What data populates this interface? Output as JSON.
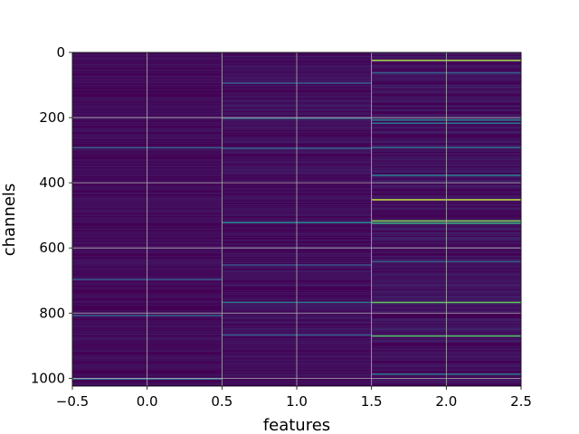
{
  "chart_data": {
    "type": "heatmap",
    "title": "",
    "xlabel": "features",
    "ylabel": "channels",
    "xlim": [
      -0.5,
      2.5
    ],
    "ylim": [
      1024,
      0
    ],
    "y_inverted": true,
    "grid": true,
    "colormap": "viridis",
    "x_ticks": [
      -0.5,
      0.0,
      0.5,
      1.0,
      1.5,
      2.0,
      2.5
    ],
    "x_tick_labels": [
      "−0.5",
      "0.0",
      "0.5",
      "1.0",
      "1.5",
      "2.0",
      "2.5"
    ],
    "y_ticks": [
      0,
      200,
      400,
      600,
      800,
      1000
    ],
    "y_tick_labels": [
      "0",
      "200",
      "400",
      "600",
      "800",
      "1000"
    ],
    "n_channels": 1024,
    "features": [
      0,
      1,
      2
    ],
    "base_color": "#440154",
    "highlight_rows": [
      {
        "feature": 0,
        "channel": 290,
        "value": 0.3
      },
      {
        "feature": 0,
        "channel": 695,
        "value": 0.25
      },
      {
        "feature": 0,
        "channel": 805,
        "value": 0.3
      },
      {
        "feature": 0,
        "channel": 1000,
        "value": 0.35
      },
      {
        "feature": 1,
        "channel": 92,
        "value": 0.3
      },
      {
        "feature": 1,
        "channel": 200,
        "value": 0.35
      },
      {
        "feature": 1,
        "channel": 292,
        "value": 0.3
      },
      {
        "feature": 1,
        "channel": 520,
        "value": 0.45
      },
      {
        "feature": 1,
        "channel": 650,
        "value": 0.25
      },
      {
        "feature": 1,
        "channel": 765,
        "value": 0.4
      },
      {
        "feature": 1,
        "channel": 865,
        "value": 0.3
      },
      {
        "feature": 2,
        "channel": 22,
        "value": 0.85
      },
      {
        "feature": 2,
        "channel": 60,
        "value": 0.3
      },
      {
        "feature": 2,
        "channel": 205,
        "value": 0.45
      },
      {
        "feature": 2,
        "channel": 215,
        "value": 0.4
      },
      {
        "feature": 2,
        "channel": 290,
        "value": 0.35
      },
      {
        "feature": 2,
        "channel": 375,
        "value": 0.4
      },
      {
        "feature": 2,
        "channel": 450,
        "value": 0.9
      },
      {
        "feature": 2,
        "channel": 515,
        "value": 0.8
      },
      {
        "feature": 2,
        "channel": 522,
        "value": 0.6
      },
      {
        "feature": 2,
        "channel": 640,
        "value": 0.3
      },
      {
        "feature": 2,
        "channel": 765,
        "value": 0.75
      },
      {
        "feature": 2,
        "channel": 868,
        "value": 0.7
      },
      {
        "feature": 2,
        "channel": 985,
        "value": 0.4
      }
    ]
  }
}
